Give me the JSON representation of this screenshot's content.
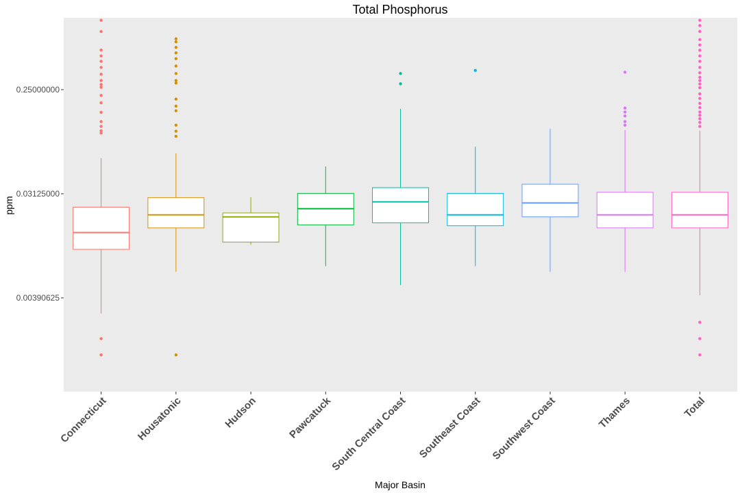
{
  "chart_data": {
    "type": "box",
    "title": "Total Phosphorus",
    "xlabel": "Major Basin",
    "ylabel": "ppm",
    "y_scale": "log2",
    "y_ticks": [
      0.00390625,
      0.03125,
      0.25
    ],
    "y_tick_labels": [
      "0.00390625",
      "0.03125000",
      "0.25000000"
    ],
    "ylim": [
      0.0006,
      1.05
    ],
    "background": "#EBEBEB",
    "grid": false,
    "legend": "none",
    "categories": [
      "Connecticut",
      "Housatonic",
      "Hudson",
      "Pawcatuck",
      "South Central Coast",
      "Southeast Coast",
      "Southwest Coast",
      "Thames",
      "Total"
    ],
    "colors": [
      "#F8766D",
      "#D39200",
      "#93AA00",
      "#00BA38",
      "#00C19F",
      "#00B9E3",
      "#619CFF",
      "#DB72FB",
      "#FF61C3"
    ],
    "boxes": [
      {
        "category": "Connecticut",
        "lower_whisker": 0.00286,
        "q1": 0.0103,
        "median": 0.0144,
        "q3": 0.0239,
        "upper_whisker": 0.0638,
        "outliers": [
          0.00125,
          0.00173,
          0.105,
          0.11,
          0.12,
          0.132,
          0.159,
          0.192,
          0.223,
          0.262,
          0.277,
          0.3,
          0.34,
          0.39,
          0.44,
          0.49,
          0.552,
          0.798,
          1.0
        ]
      },
      {
        "category": "Housatonic",
        "lower_whisker": 0.00658,
        "q1": 0.0158,
        "median": 0.0205,
        "q3": 0.0289,
        "upper_whisker": 0.07,
        "outliers": [
          0.00125,
          0.0984,
          0.109,
          0.123,
          0.164,
          0.18,
          0.207,
          0.285,
          0.3,
          0.345,
          0.401,
          0.464,
          0.521,
          0.582,
          0.65,
          0.69
        ]
      },
      {
        "category": "Hudson",
        "lower_whisker": 0.0113,
        "q1": 0.0119,
        "median": 0.0197,
        "q3": 0.0213,
        "upper_whisker": 0.0292,
        "outliers": []
      },
      {
        "category": "Pawcatuck",
        "lower_whisker": 0.00737,
        "q1": 0.0168,
        "median": 0.0232,
        "q3": 0.0315,
        "upper_whisker": 0.0538,
        "outliers": []
      },
      {
        "category": "South Central Coast",
        "lower_whisker": 0.00504,
        "q1": 0.0175,
        "median": 0.0266,
        "q3": 0.0353,
        "upper_whisker": 0.1705,
        "outliers": [
          0.281,
          0.345
        ]
      },
      {
        "category": "Southeast Coast",
        "lower_whisker": 0.00737,
        "q1": 0.0165,
        "median": 0.0205,
        "q3": 0.0315,
        "upper_whisker": 0.0801,
        "outliers": [
          0.367
        ]
      },
      {
        "category": "Southwest Coast",
        "lower_whisker": 0.00658,
        "q1": 0.0197,
        "median": 0.026,
        "q3": 0.0378,
        "upper_whisker": 0.1142,
        "outliers": []
      },
      {
        "category": "Thames",
        "lower_whisker": 0.00658,
        "q1": 0.0158,
        "median": 0.0205,
        "q3": 0.0322,
        "upper_whisker": 0.1116,
        "outliers": [
          0.123,
          0.132,
          0.148,
          0.16,
          0.173,
          0.354
        ]
      },
      {
        "category": "Total",
        "lower_whisker": 0.00411,
        "q1": 0.0158,
        "median": 0.0205,
        "q3": 0.0322,
        "upper_whisker": 0.11,
        "outliers": [
          0.00125,
          0.00173,
          0.0024,
          0.12,
          0.13,
          0.14,
          0.15,
          0.16,
          0.175,
          0.19,
          0.21,
          0.23,
          0.26,
          0.28,
          0.3,
          0.32,
          0.35,
          0.39,
          0.44,
          0.49,
          0.55,
          0.61,
          0.68,
          0.8,
          0.9,
          1.0
        ]
      }
    ]
  }
}
